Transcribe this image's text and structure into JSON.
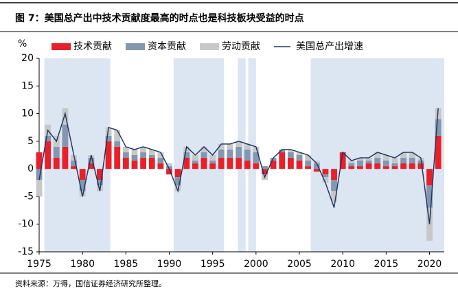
{
  "chart_data": {
    "type": "stacked_bar_line",
    "title": "图 7：美国总产出中技术贡献度最高的时点也是科技板块受益的时点",
    "y_label": "%",
    "source": "资料来源：万得，国信证券经济研究所整理。",
    "x": [
      1975,
      1976,
      1977,
      1978,
      1979,
      1980,
      1981,
      1982,
      1983,
      1984,
      1985,
      1986,
      1987,
      1988,
      1989,
      1990,
      1991,
      1992,
      1993,
      1994,
      1995,
      1996,
      1997,
      1998,
      1999,
      2000,
      2001,
      2002,
      2003,
      2004,
      2005,
      2006,
      2007,
      2008,
      2009,
      2010,
      2011,
      2012,
      2013,
      2014,
      2015,
      2016,
      2017,
      2018,
      2019,
      2020,
      2021
    ],
    "series": [
      {
        "name": "技术贡献",
        "color": "#e8202a",
        "kind": "bar",
        "values": [
          3,
          5,
          2,
          4,
          0.5,
          -2,
          1,
          -2,
          5,
          4,
          2,
          1.5,
          2,
          2,
          1,
          -1,
          -1.5,
          2,
          1,
          2,
          1,
          2,
          2,
          2,
          1.5,
          1,
          -1,
          1.5,
          3,
          2,
          1.5,
          0.5,
          -0.5,
          -1,
          -2,
          3,
          0.5,
          0.5,
          1,
          1,
          0.5,
          0.5,
          1,
          1,
          1,
          -3,
          6
        ]
      },
      {
        "name": "资本贡献",
        "color": "#8497b0",
        "kind": "bar",
        "values": [
          -2,
          1,
          2,
          4,
          1,
          -2,
          1,
          -1,
          1,
          1,
          1,
          1,
          1,
          0.5,
          1,
          0.5,
          -1.5,
          1,
          0.5,
          1,
          0.5,
          1.5,
          1.5,
          2,
          2,
          2,
          0.5,
          0.5,
          0.5,
          1,
          1,
          1,
          1,
          -0.5,
          -2,
          0,
          0.5,
          1,
          0.5,
          1,
          1,
          0.5,
          1,
          1,
          0.5,
          -4,
          3
        ]
      },
      {
        "name": "劳动贡献",
        "color": "#c8c8c8",
        "kind": "bar",
        "values": [
          -3,
          2,
          2,
          3,
          1,
          -1,
          0.5,
          -1,
          1.5,
          2,
          1,
          1,
          1,
          1,
          1,
          0.5,
          -1,
          1,
          1,
          1,
          1,
          1,
          1,
          1,
          1,
          1,
          -1,
          0,
          0,
          0.5,
          0.5,
          1,
          0.5,
          -1,
          -2,
          0,
          0.5,
          0.5,
          0.5,
          1,
          1,
          1,
          1,
          1,
          0.5,
          -6,
          2
        ]
      },
      {
        "name": "美国总产出增速",
        "color": "#1f3864",
        "kind": "line",
        "values": [
          -2,
          7,
          5,
          10,
          2.5,
          -5,
          2.5,
          -4,
          7.5,
          7,
          4,
          3.5,
          4,
          3.5,
          3,
          0,
          -4,
          4,
          2.5,
          4,
          2.5,
          4.5,
          4.5,
          5,
          4.5,
          4,
          -1.5,
          2,
          3.5,
          3.5,
          3,
          2.5,
          1,
          -2.5,
          -7,
          3,
          1.5,
          2,
          2,
          3,
          2.5,
          2,
          3,
          3,
          2,
          -10,
          11
        ]
      }
    ],
    "shaded_periods": [
      [
        1975.6,
        1983.2
      ],
      [
        1990.5,
        1996.3
      ],
      [
        1997.9,
        1998.8
      ],
      [
        1999.1,
        2000.0
      ],
      [
        2006.3,
        2021.7
      ]
    ],
    "shade_color": "#dce6f2",
    "xlim": [
      1975,
      2021.7
    ],
    "xticks": [
      1975,
      1980,
      1985,
      1990,
      1995,
      2000,
      2005,
      2010,
      2015,
      2020
    ],
    "ylim": [
      -15,
      20
    ],
    "yticks": [
      -15,
      -10,
      -5,
      0,
      5,
      10,
      15,
      20
    ]
  }
}
